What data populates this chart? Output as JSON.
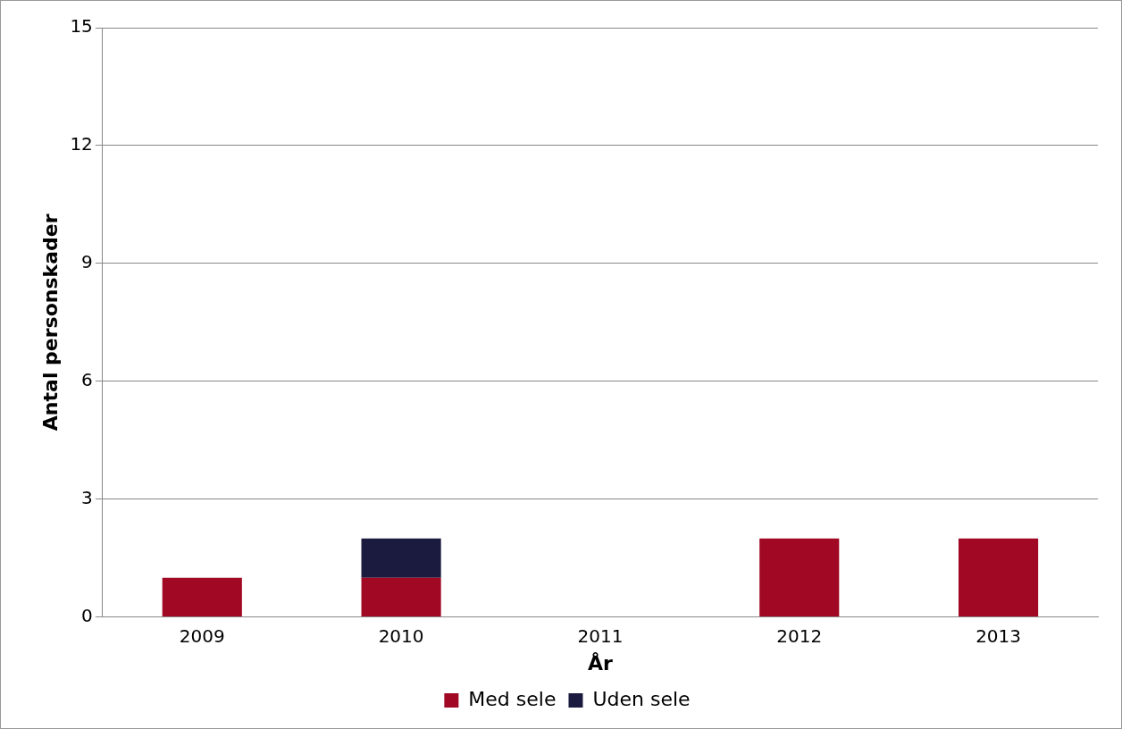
{
  "chart_data": {
    "type": "bar",
    "stacked": true,
    "xlabel": "År",
    "ylabel": "Antal personskader",
    "categories": [
      "2009",
      "2010",
      "2011",
      "2012",
      "2013"
    ],
    "series": [
      {
        "name": "Med sele",
        "color": "#a00824",
        "values": [
          1,
          1,
          0,
          2,
          2
        ]
      },
      {
        "name": "Uden sele",
        "color": "#1b1a3f",
        "values": [
          0,
          1,
          0,
          0,
          0
        ]
      }
    ],
    "ylim": [
      0,
      15
    ],
    "yticks": [
      0,
      3,
      6,
      9,
      12,
      15
    ],
    "grid": "y",
    "legend": "bottom"
  }
}
